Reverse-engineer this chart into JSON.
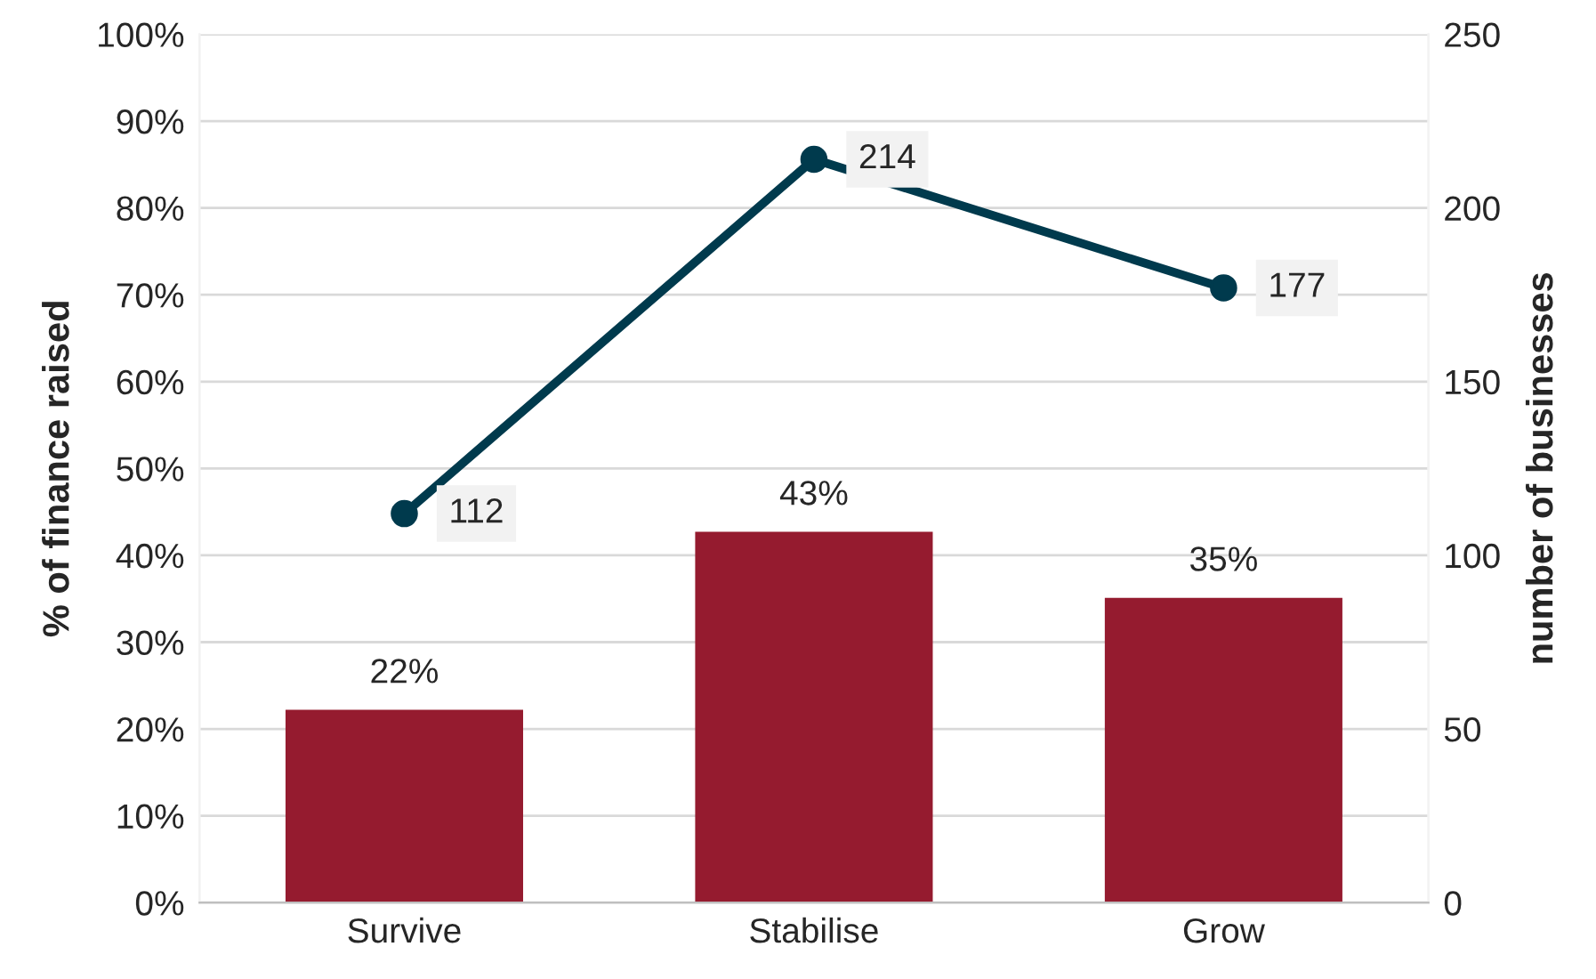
{
  "chart_data": {
    "type": "bar",
    "ylabel": "% of finance raised",
    "y2label": "number of businesses",
    "categories": [
      "Survive",
      "Stabilise",
      "Grow"
    ],
    "series": [
      {
        "color": "#951b2f",
        "values": [
          22.2,
          42.7,
          35.1
        ],
        "value_labels": [
          "22%",
          "43%",
          "35%"
        ]
      },
      {
        "type": "line",
        "axis": "y2",
        "color": "#003a4d",
        "values": [
          112,
          214,
          177
        ],
        "marker": "circle",
        "data_labels": true
      }
    ],
    "ylim": [
      0,
      100
    ],
    "yticks": [
      {
        "value": 0,
        "label": "0%"
      },
      {
        "value": 10,
        "label": "10%"
      },
      {
        "value": 20,
        "label": "20%"
      },
      {
        "value": 30,
        "label": "30%"
      },
      {
        "value": 40,
        "label": "40%"
      },
      {
        "value": 50,
        "label": "50%"
      },
      {
        "value": 60,
        "label": "60%"
      },
      {
        "value": 70,
        "label": "70%"
      },
      {
        "value": 80,
        "label": "80%"
      },
      {
        "value": 90,
        "label": "90%"
      },
      {
        "value": 100,
        "label": "100%"
      }
    ],
    "y2lim": [
      0,
      250
    ],
    "y2ticks": [
      0,
      50,
      100,
      150,
      200,
      250
    ],
    "grid": "y",
    "legend": false
  }
}
